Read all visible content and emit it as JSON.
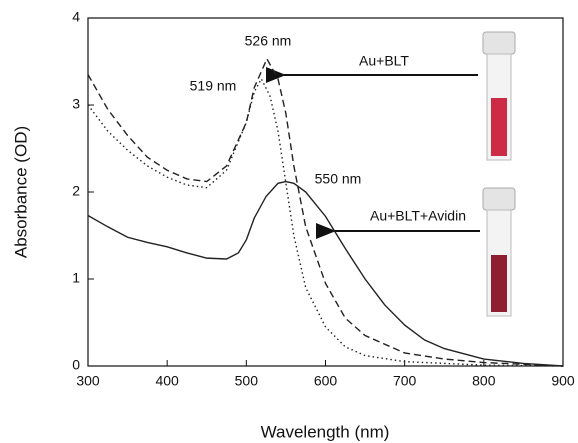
{
  "chart_data": {
    "type": "line",
    "x_label": "Wavelength (nm)",
    "y_label": "Absorbance (OD)",
    "xlim": [
      300,
      900
    ],
    "xticks": [
      300,
      400,
      500,
      600,
      700,
      800,
      900
    ],
    "ylim": [
      0,
      4
    ],
    "yticks": [
      0,
      1,
      2,
      3,
      4
    ],
    "annotations": [
      "526 nm",
      "519 nm",
      "550 nm",
      "Au+BLT",
      "Au+BLT+Avidin"
    ],
    "series": [
      {
        "style": "solid",
        "color": "#222222",
        "x": [
          300,
          325,
          350,
          375,
          400,
          425,
          450,
          475,
          490,
          500,
          510,
          525,
          540,
          550,
          560,
          575,
          600,
          625,
          650,
          675,
          700,
          725,
          750,
          800,
          850,
          900
        ],
        "values": [
          1.73,
          1.6,
          1.48,
          1.42,
          1.37,
          1.3,
          1.24,
          1.23,
          1.3,
          1.45,
          1.7,
          1.95,
          2.1,
          2.12,
          2.1,
          2.0,
          1.72,
          1.35,
          1.0,
          0.7,
          0.47,
          0.3,
          0.2,
          0.08,
          0.03,
          0
        ]
      },
      {
        "style": "dashed",
        "color": "#222222",
        "x": [
          300,
          325,
          350,
          375,
          400,
          425,
          450,
          475,
          500,
          510,
          526,
          540,
          550,
          560,
          575,
          600,
          625,
          650,
          700,
          750,
          800,
          850,
          900
        ],
        "values": [
          3.35,
          2.95,
          2.65,
          2.4,
          2.25,
          2.15,
          2.12,
          2.3,
          2.8,
          3.2,
          3.53,
          3.3,
          2.9,
          2.3,
          1.6,
          0.95,
          0.55,
          0.35,
          0.15,
          0.08,
          0.04,
          0.02,
          0
        ]
      },
      {
        "style": "dotted",
        "color": "#222222",
        "x": [
          300,
          325,
          350,
          375,
          400,
          425,
          450,
          475,
          500,
          510,
          519,
          530,
          540,
          550,
          560,
          575,
          600,
          625,
          650,
          700,
          800,
          900
        ],
        "values": [
          3.0,
          2.7,
          2.48,
          2.3,
          2.17,
          2.08,
          2.05,
          2.25,
          2.8,
          3.15,
          3.3,
          3.1,
          2.7,
          2.1,
          1.5,
          0.9,
          0.45,
          0.22,
          0.12,
          0.05,
          0.01,
          0
        ]
      }
    ]
  }
}
